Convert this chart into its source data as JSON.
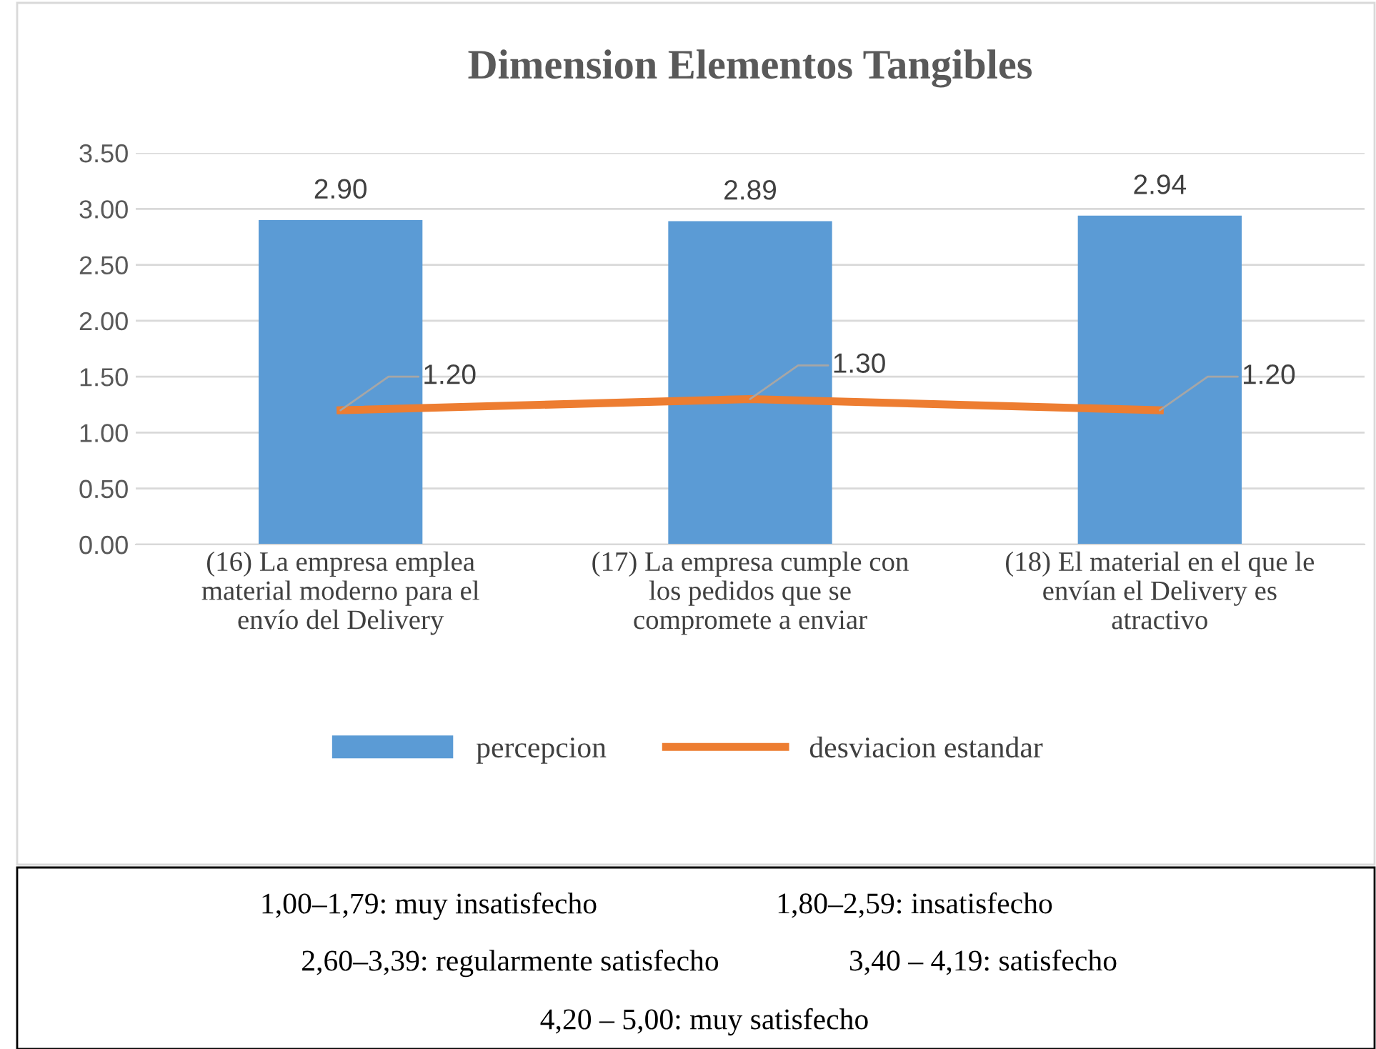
{
  "chart_data": {
    "type": "bar",
    "title": "Dimension Elementos Tangibles",
    "categories": [
      "(16) La empresa emplea\nmaterial moderno para el\nenvío del Delivery",
      "(17) La empresa cumple con\nlos pedidos que se\ncompromete a enviar",
      "(18) El material en el que le\nenvían el Delivery es\natractivo"
    ],
    "series": [
      {
        "name": "percepcion",
        "color": "#5b9bd5",
        "values": [
          2.9,
          2.89,
          2.94
        ],
        "value_labels": [
          "2.90",
          "2.89",
          "2.94"
        ]
      },
      {
        "name": "desviacion estandar",
        "type": "line",
        "color": "#ed7d31",
        "values": [
          1.2,
          1.3,
          1.2
        ],
        "value_labels": [
          "1.20",
          "1.30",
          "1.20"
        ]
      }
    ],
    "ylim": [
      0,
      3.5
    ],
    "yticks": [
      {
        "value": 0,
        "label": "0.00"
      },
      {
        "value": 0.5,
        "label": "0.50"
      },
      {
        "value": 1,
        "label": "1.00"
      },
      {
        "value": 1.5,
        "label": "1.50"
      },
      {
        "value": 2,
        "label": "2.00"
      },
      {
        "value": 2.5,
        "label": "2.50"
      },
      {
        "value": 3,
        "label": "3.00"
      },
      {
        "value": 3.5,
        "label": "3.50"
      }
    ],
    "grid": "y",
    "legend": "bottom",
    "marker": "none",
    "annotations": [
      "1,00–1,79: muy insatisfecho",
      "1,80–2,59: insatisfecho",
      "2,60–3,39: regularmente satisfecho",
      "3,40 – 4,19: satisfecho",
      "4,20 – 5,00: muy satisfecho"
    ]
  }
}
